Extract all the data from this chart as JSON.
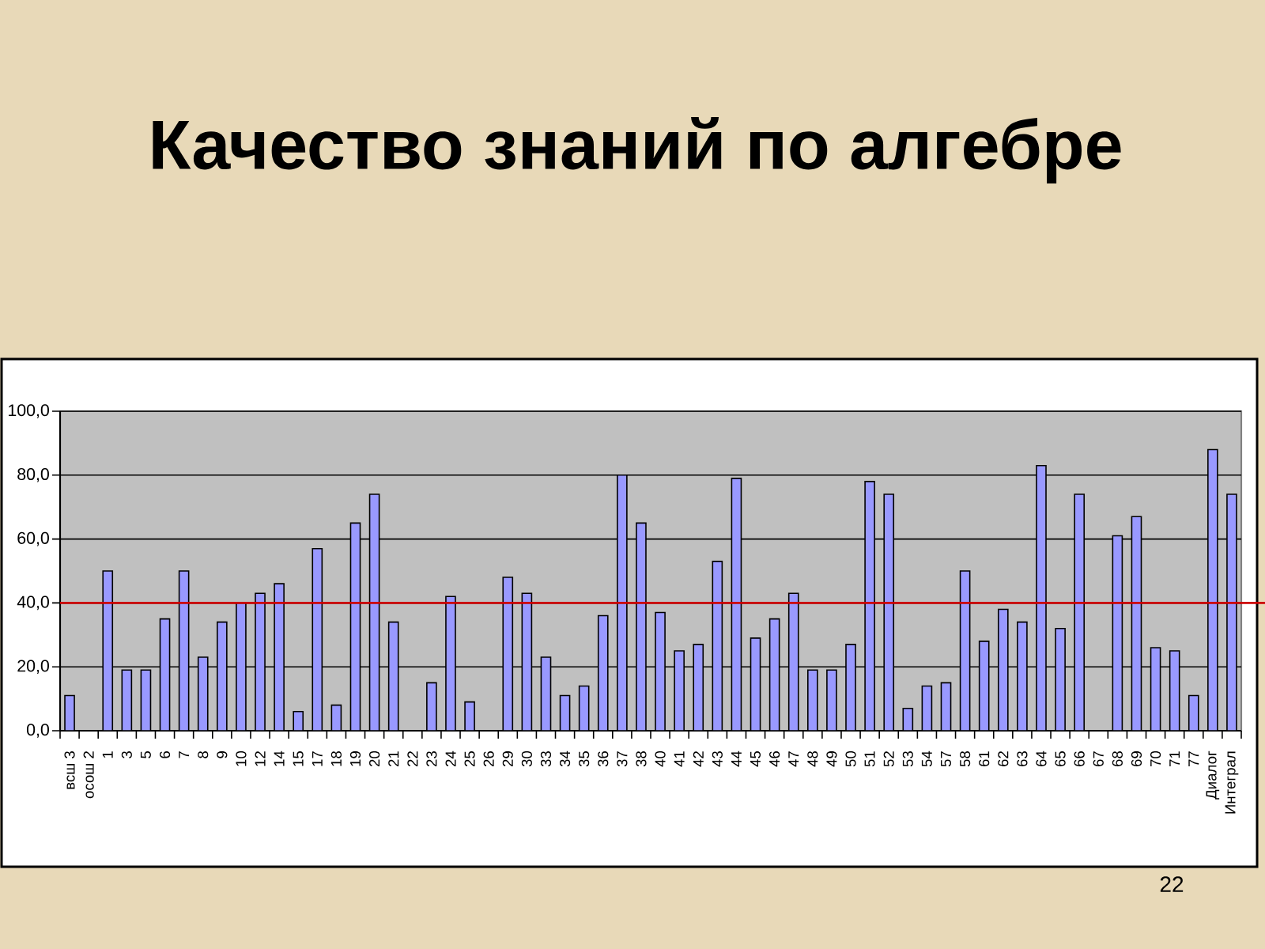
{
  "chart_data": {
    "type": "bar",
    "title": "Качество знаний по алгебре",
    "categories": [
      "всш 3",
      "осош 2",
      "1",
      "3",
      "5",
      "6",
      "7",
      "8",
      "9",
      "10",
      "12",
      "14",
      "15",
      "17",
      "18",
      "19",
      "20",
      "21",
      "22",
      "23",
      "24",
      "25",
      "26",
      "29",
      "30",
      "33",
      "34",
      "35",
      "36",
      "37",
      "38",
      "40",
      "41",
      "42",
      "43",
      "44",
      "45",
      "46",
      "47",
      "48",
      "49",
      "50",
      "51",
      "52",
      "53",
      "54",
      "57",
      "58",
      "61",
      "62",
      "63",
      "64",
      "65",
      "66",
      "67",
      "68",
      "69",
      "70",
      "71",
      "77",
      "Диалог",
      "Интеграл"
    ],
    "values": [
      11,
      null,
      50,
      19,
      19,
      35,
      50,
      23,
      34,
      40,
      43,
      46,
      6,
      57,
      8,
      65,
      74,
      34,
      null,
      15,
      42,
      9,
      null,
      48,
      43,
      23,
      11,
      14,
      36,
      80,
      65,
      37,
      25,
      27,
      53,
      79,
      29,
      35,
      43,
      19,
      19,
      27,
      78,
      74,
      7,
      14,
      15,
      50,
      28,
      38,
      34,
      83,
      32,
      74,
      null,
      61,
      67,
      26,
      25,
      11,
      88,
      74
    ],
    "color": "#9999ff",
    "ylim": [
      0,
      100
    ],
    "yticks": [
      {
        "value": 0,
        "label": "0,0"
      },
      {
        "value": 20,
        "label": "20,0"
      },
      {
        "value": 40,
        "label": "40,0"
      },
      {
        "value": 60,
        "label": "60,0"
      },
      {
        "value": 80,
        "label": "80,0"
      },
      {
        "value": 100,
        "label": "100,0"
      }
    ],
    "grid": "y",
    "ref_lines": [
      {
        "axis": "y",
        "value": 40,
        "color": "#cc0000"
      }
    ],
    "annotations": [
      "22"
    ]
  }
}
